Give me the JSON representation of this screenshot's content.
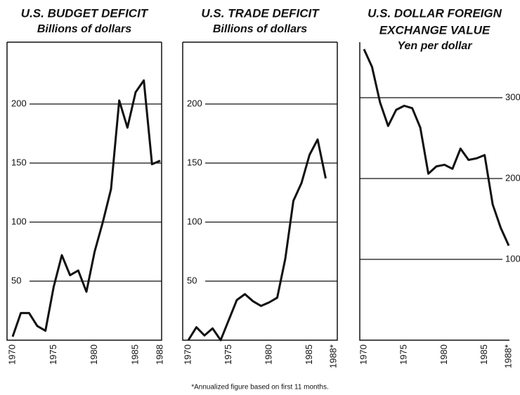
{
  "chart_data": [
    {
      "type": "line",
      "title": "U.S. BUDGET DEFICIT",
      "subtitle": "Billions of dollars",
      "color": "#111111",
      "x": [
        1970,
        1971,
        1972,
        1973,
        1974,
        1975,
        1976,
        1977,
        1978,
        1979,
        1980,
        1981,
        1982,
        1983,
        1984,
        1985,
        1986,
        1987,
        1988
      ],
      "values": [
        3,
        23,
        23,
        12,
        8,
        45,
        72,
        55,
        59,
        41,
        75,
        100,
        128,
        203,
        180,
        210,
        220,
        149,
        152
      ],
      "xlim": [
        1970,
        1988
      ],
      "xticks": [
        1970,
        1975,
        1980,
        1985,
        1988
      ],
      "ylim": [
        0,
        250
      ],
      "yticks": [
        50,
        100,
        150,
        200
      ],
      "grid": true
    },
    {
      "type": "line",
      "title": "U.S. TRADE DEFICIT",
      "subtitle": "Billions of dollars",
      "color": "#111111",
      "x": [
        1970,
        1971,
        1972,
        1973,
        1974,
        1975,
        1976,
        1977,
        1978,
        1979,
        1980,
        1981,
        1982,
        1983,
        1984,
        1985,
        1986,
        1987,
        1988
      ],
      "values": [
        0,
        11,
        4,
        10,
        0,
        17,
        34,
        39,
        33,
        29,
        32,
        36,
        69,
        118,
        133,
        157,
        170,
        137,
        null
      ],
      "xlim": [
        1970,
        1988
      ],
      "xticks": [
        1970,
        1975,
        1980,
        1985,
        {
          "value": 1988,
          "label": "1988*"
        }
      ],
      "ylim": [
        0,
        250
      ],
      "yticks": [
        50,
        100,
        150,
        200
      ],
      "grid": true
    },
    {
      "type": "line",
      "title": [
        "U.S. DOLLAR FOREIGN",
        "EXCHANGE VALUE"
      ],
      "subtitle": "Yen per dollar",
      "color": "#111111",
      "x": [
        1970,
        1971,
        1972,
        1973,
        1974,
        1975,
        1976,
        1977,
        1978,
        1979,
        1980,
        1981,
        1982,
        1983,
        1984,
        1985,
        1986,
        1987,
        1988
      ],
      "values": [
        360,
        338,
        294,
        265,
        285,
        290,
        287,
        263,
        206,
        215,
        217,
        212,
        237,
        223,
        225,
        229,
        168,
        139,
        117
      ],
      "xlim": [
        1970,
        1988
      ],
      "xticks": [
        1970,
        1975,
        1980,
        1985,
        {
          "value": 1988,
          "label": "1988*"
        }
      ],
      "ylim": [
        0,
        360
      ],
      "yticks": [
        100,
        200,
        300
      ],
      "grid": true
    }
  ],
  "footnote": "*Annualized figure based on first 11 months."
}
